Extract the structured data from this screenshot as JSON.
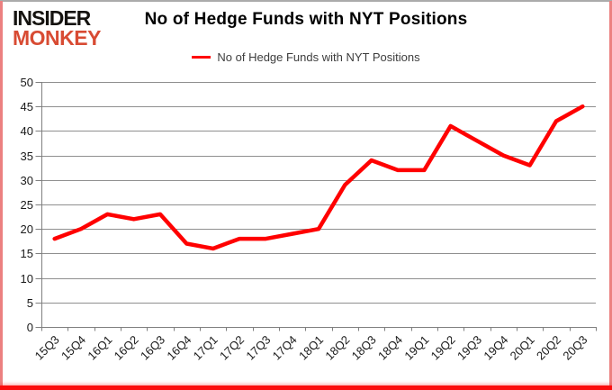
{
  "logo": {
    "line1": "INSIDER",
    "line2": "MONKEY",
    "line1_color": "#151310",
    "line2_color": "#d84b33"
  },
  "title": "No of Hedge Funds with NYT Positions",
  "legend": {
    "label": "No of Hedge Funds with NYT Positions",
    "line_color": "#ff0000"
  },
  "chart_data": {
    "type": "line",
    "title": "No of Hedge Funds with NYT Positions",
    "categories": [
      "15Q3",
      "15Q4",
      "16Q1",
      "16Q2",
      "16Q3",
      "16Q4",
      "17Q1",
      "17Q2",
      "17Q3",
      "17Q4",
      "18Q1",
      "18Q2",
      "18Q3",
      "18Q4",
      "19Q1",
      "19Q2",
      "19Q3",
      "19Q4",
      "20Q1",
      "20Q2",
      "20Q3"
    ],
    "series": [
      {
        "name": "No of Hedge Funds with NYT Positions",
        "color": "#ff0000",
        "values": [
          18,
          20,
          23,
          22,
          23,
          17,
          16,
          18,
          18,
          19,
          20,
          29,
          34,
          32,
          32,
          41,
          38,
          35,
          33,
          42,
          45
        ]
      }
    ],
    "xlabel": "",
    "ylabel": "",
    "ylim": [
      0,
      50
    ],
    "ytick_step": 5,
    "grid": true,
    "gridline_color": "#8f8f8f",
    "axis_color": "#7f7f7f",
    "tick_label_color": "#1a1a1a",
    "legend_position": "top-center"
  }
}
